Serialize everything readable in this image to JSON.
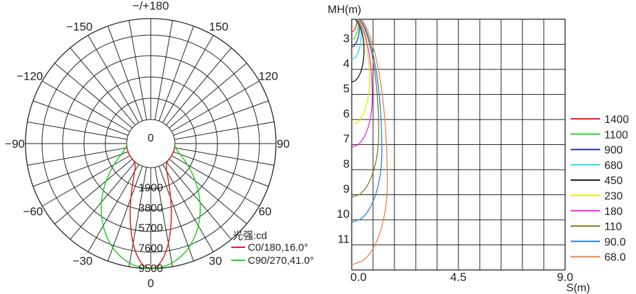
{
  "chart_data": [
    {
      "type": "polar",
      "angle_labels": [
        {
          "deg": 180,
          "label": "−/+180"
        },
        {
          "deg": 150,
          "label": "−150"
        },
        {
          "deg": -150,
          "label": "150"
        },
        {
          "deg": 120,
          "label": "−120"
        },
        {
          "deg": -120,
          "label": "120"
        },
        {
          "deg": 90,
          "label": "−90"
        },
        {
          "deg": -90,
          "label": "90"
        },
        {
          "deg": 60,
          "label": "−60"
        },
        {
          "deg": -60,
          "label": "60"
        },
        {
          "deg": 30,
          "label": "−30"
        },
        {
          "deg": -30,
          "label": "30"
        },
        {
          "deg": 0,
          "label": "0"
        }
      ],
      "rings": [
        0,
        1900,
        3800,
        5700,
        7600,
        9500
      ],
      "center_label": "0",
      "r_max": 9500,
      "legend_title": "光强:cd",
      "series": [
        {
          "name": "C0/180,16.0°",
          "color": "#d42020",
          "peak": 9500,
          "half_angle": 16
        },
        {
          "name": "C90/270,41.0°",
          "color": "#22cc22",
          "peak": 9500,
          "half_angle": 41
        }
      ]
    },
    {
      "type": "line",
      "ylabel": "MH(m)",
      "xlabel": "S(m)",
      "x_ticks": [
        "0.0",
        "4.5",
        "9.0"
      ],
      "xlim": [
        0,
        9
      ],
      "y_ticks": [
        "3",
        "4",
        "5",
        "6",
        "7",
        "8",
        "9",
        "10",
        "11"
      ],
      "ylim": [
        2,
        12
      ],
      "series": [
        {
          "name": "1400",
          "color": "#e02020",
          "mh_bottom": 2.5
        },
        {
          "name": "1100",
          "color": "#22dd22",
          "mh_bottom": 2.8
        },
        {
          "name": "900",
          "color": "#1a2fb0",
          "mh_bottom": 3.1
        },
        {
          "name": "680",
          "color": "#22dddd",
          "mh_bottom": 3.6
        },
        {
          "name": "450",
          "color": "#111111",
          "mh_bottom": 4.5
        },
        {
          "name": "230",
          "color": "#e8e800",
          "mh_bottom": 6.2
        },
        {
          "name": "180",
          "color": "#ee22ee",
          "mh_bottom": 7.1
        },
        {
          "name": "110",
          "color": "#7a7a10",
          "mh_bottom": 9.1
        },
        {
          "name": "90.0",
          "color": "#2080e0",
          "mh_bottom": 10.1
        },
        {
          "name": "68.0",
          "color": "#f08040",
          "mh_bottom": 11.8
        }
      ]
    }
  ]
}
